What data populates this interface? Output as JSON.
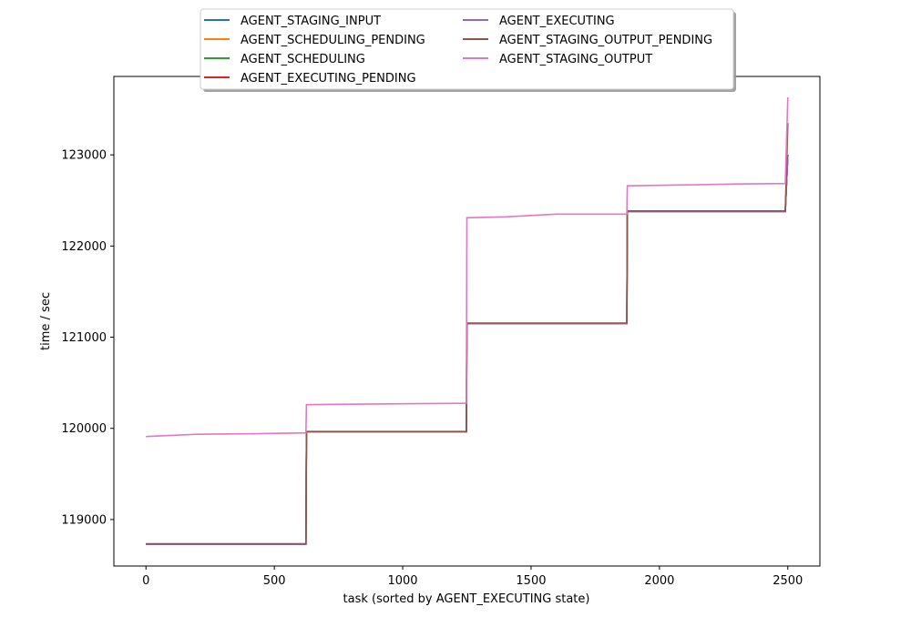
{
  "chart_data": {
    "type": "line",
    "title": "",
    "xlabel": "task (sorted by AGENT_EXECUTING state)",
    "ylabel": "time / sec",
    "xlim": [
      -125,
      2625
    ],
    "ylim": [
      118490,
      123860
    ],
    "xticks": [
      0,
      500,
      1000,
      1500,
      2000,
      2500
    ],
    "yticks": [
      119000,
      120000,
      121000,
      122000,
      123000
    ],
    "grid": false,
    "legend_placement": "top-center",
    "series": [
      {
        "name": "AGENT_STAGING_INPUT",
        "color": "#1f77b4",
        "points": [
          [
            0,
            118730
          ],
          [
            623,
            118730
          ],
          [
            625,
            119960
          ],
          [
            1248,
            119960
          ],
          [
            1250,
            121150
          ],
          [
            1873,
            121150
          ],
          [
            1875,
            122380
          ],
          [
            2490,
            122380
          ],
          [
            2500,
            123000
          ]
        ]
      },
      {
        "name": "AGENT_SCHEDULING_PENDING",
        "color": "#ff7f0e",
        "points": [
          [
            0,
            118730
          ],
          [
            623,
            118730
          ],
          [
            625,
            119960
          ],
          [
            1248,
            119960
          ],
          [
            1250,
            121150
          ],
          [
            1873,
            121150
          ],
          [
            1875,
            122380
          ],
          [
            2490,
            122380
          ],
          [
            2500,
            123000
          ]
        ]
      },
      {
        "name": "AGENT_SCHEDULING",
        "color": "#2ca02c",
        "points": [
          [
            0,
            118730
          ],
          [
            623,
            118730
          ],
          [
            625,
            119960
          ],
          [
            1248,
            119960
          ],
          [
            1250,
            121150
          ],
          [
            1873,
            121150
          ],
          [
            1875,
            122380
          ],
          [
            2490,
            122380
          ],
          [
            2500,
            123000
          ]
        ]
      },
      {
        "name": "AGENT_EXECUTING_PENDING",
        "color": "#d62728",
        "points": [
          [
            0,
            118730
          ],
          [
            623,
            118730
          ],
          [
            625,
            119960
          ],
          [
            1248,
            119960
          ],
          [
            1250,
            121150
          ],
          [
            1873,
            121150
          ],
          [
            1875,
            122380
          ],
          [
            2490,
            122380
          ],
          [
            2500,
            123000
          ]
        ]
      },
      {
        "name": "AGENT_EXECUTING",
        "color": "#9467bd",
        "points": [
          [
            0,
            118730
          ],
          [
            623,
            118730
          ],
          [
            625,
            119960
          ],
          [
            1248,
            119960
          ],
          [
            1250,
            121150
          ],
          [
            1873,
            121150
          ],
          [
            1875,
            122380
          ],
          [
            2490,
            122380
          ],
          [
            2500,
            123000
          ]
        ]
      },
      {
        "name": "AGENT_STAGING_OUTPUT_PENDING",
        "color": "#8c564b",
        "points": [
          [
            0,
            118735
          ],
          [
            623,
            118735
          ],
          [
            625,
            119965
          ],
          [
            1248,
            119965
          ],
          [
            1250,
            121155
          ],
          [
            1873,
            121155
          ],
          [
            1875,
            122385
          ],
          [
            2490,
            122385
          ],
          [
            2500,
            123350
          ]
        ]
      },
      {
        "name": "AGENT_STAGING_OUTPUT",
        "color": "#e377c2",
        "points": [
          [
            0,
            119910
          ],
          [
            200,
            119935
          ],
          [
            400,
            119940
          ],
          [
            623,
            119950
          ],
          [
            625,
            120260
          ],
          [
            800,
            120265
          ],
          [
            1000,
            120270
          ],
          [
            1248,
            120275
          ],
          [
            1250,
            122310
          ],
          [
            1400,
            122320
          ],
          [
            1600,
            122350
          ],
          [
            1873,
            122350
          ],
          [
            1875,
            122660
          ],
          [
            2100,
            122670
          ],
          [
            2300,
            122680
          ],
          [
            2490,
            122685
          ],
          [
            2500,
            123630
          ]
        ]
      }
    ]
  }
}
